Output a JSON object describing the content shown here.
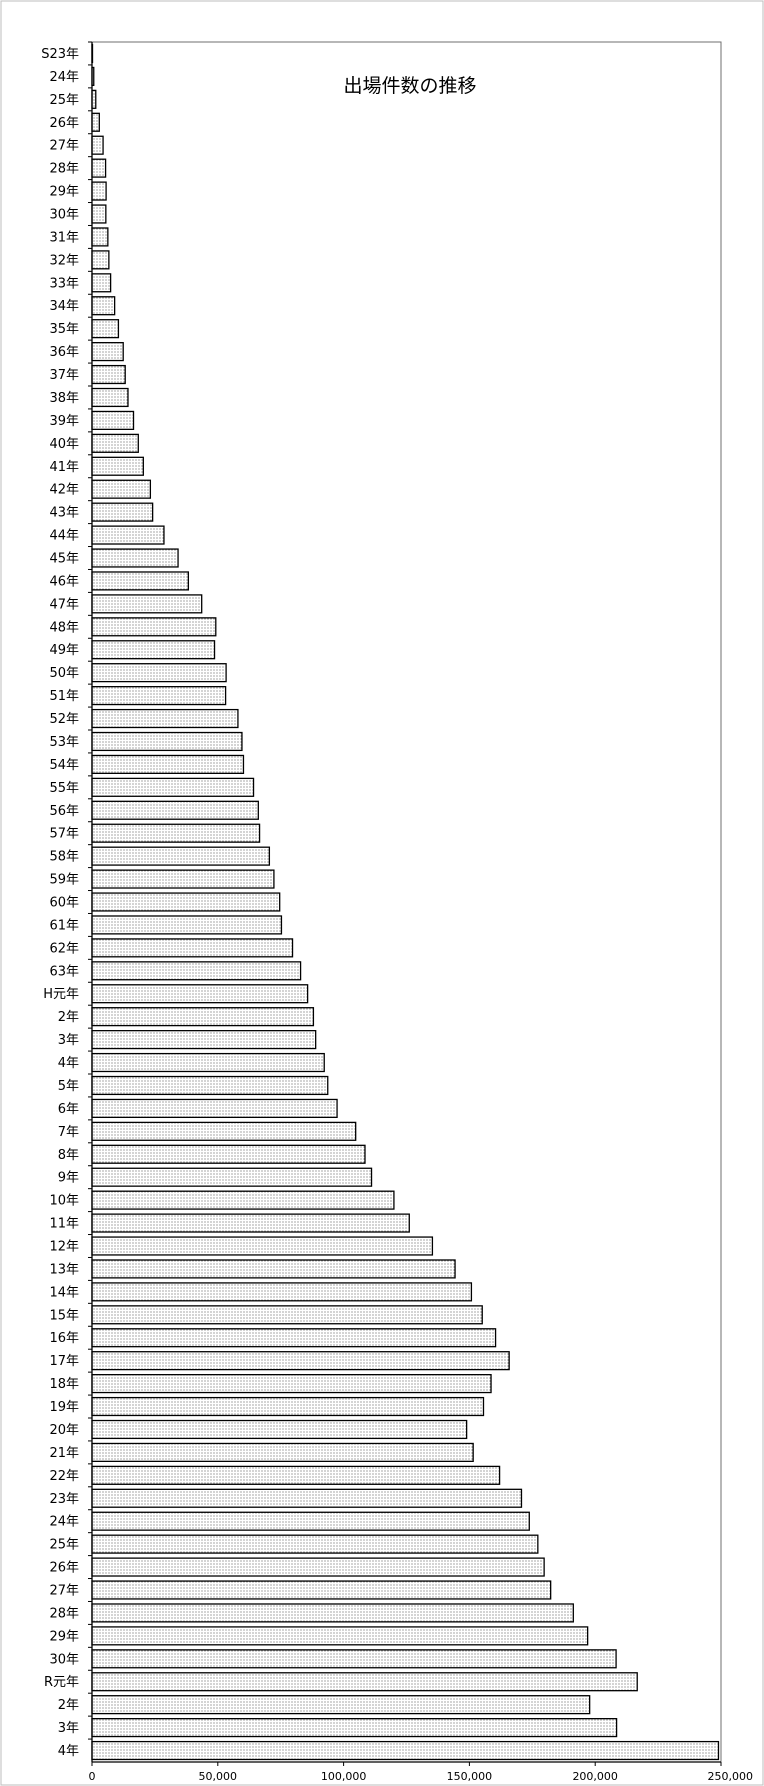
{
  "chart_data": {
    "type": "bar",
    "orientation": "horizontal",
    "title": "出場件数の推移",
    "xlabel": "",
    "ylabel": "",
    "xlim": [
      0,
      250000
    ],
    "x_ticks": [
      "0",
      "50,000",
      "100,000",
      "150,000",
      "200,000",
      "250,000"
    ],
    "grid": false,
    "legend": "none",
    "bar_fill": "dotted",
    "categories": [
      "S23年",
      "24年",
      "25年",
      "26年",
      "27年",
      "28年",
      "29年",
      "30年",
      "31年",
      "32年",
      "33年",
      "34年",
      "35年",
      "36年",
      "37年",
      "38年",
      "39年",
      "40年",
      "41年",
      "42年",
      "43年",
      "44年",
      "45年",
      "46年",
      "47年",
      "48年",
      "49年",
      "50年",
      "51年",
      "52年",
      "53年",
      "54年",
      "55年",
      "56年",
      "57年",
      "58年",
      "59年",
      "60年",
      "61年",
      "62年",
      "63年",
      "H元年",
      "2年",
      "3年",
      "4年",
      "5年",
      "6年",
      "7年",
      "8年",
      "9年",
      "10年",
      "11年",
      "12年",
      "13年",
      "14年",
      "15年",
      "16年",
      "17年",
      "18年",
      "19年",
      "20年",
      "21年",
      "22年",
      "23年",
      "24年",
      "25年",
      "26年",
      "27年",
      "28年",
      "29年",
      "30年",
      "R元年",
      "2年",
      "3年",
      "4年"
    ],
    "values": [
      100,
      700,
      1500,
      2900,
      4400,
      5400,
      5600,
      5500,
      6300,
      6700,
      7400,
      9000,
      10500,
      12400,
      13200,
      14300,
      16500,
      18400,
      20400,
      23200,
      24100,
      28600,
      34200,
      38300,
      43600,
      49200,
      48700,
      53300,
      53100,
      58000,
      59600,
      60200,
      64200,
      66100,
      66600,
      70500,
      72300,
      74600,
      75300,
      79700,
      82900,
      85700,
      88000,
      88900,
      92300,
      93700,
      97400,
      104800,
      108500,
      111100,
      120000,
      126100,
      135300,
      144300,
      150800,
      155100,
      160400,
      165800,
      158600,
      155600,
      148900,
      151500,
      162000,
      170700,
      173800,
      177200,
      179700,
      182300,
      191300,
      197000,
      208300,
      216700,
      197800,
      208500,
      249000
    ],
    "colors": {
      "bar_fill": "#ffffff",
      "bar_dots": "#555555",
      "bar_stroke": "#000000",
      "axis": "#000000",
      "frame": "#bdbdbd"
    }
  }
}
